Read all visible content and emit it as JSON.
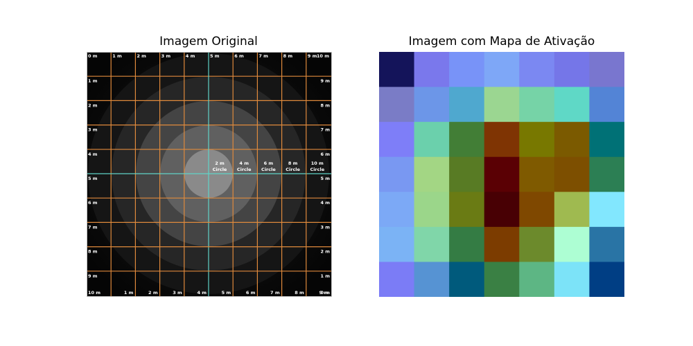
{
  "left_panel": {
    "title": "Imagem Original",
    "top_labels": [
      "0 m",
      "1 m",
      "2 m",
      "3 m",
      "4 m",
      "5 m",
      "6 m",
      "7 m",
      "8 m",
      "9 m",
      "10 m"
    ],
    "left_labels": [
      "1 m",
      "2 m",
      "3 m",
      "4 m",
      "5 m",
      "6 m",
      "7 m",
      "8 m",
      "9 m"
    ],
    "right_labels": [
      "9 m",
      "8 m",
      "7 m",
      "6 m",
      "5 m",
      "4 m",
      "3 m",
      "2 m",
      "1 m"
    ],
    "bottom_labels": [
      "10 m",
      "9 m",
      "8 m",
      "7 m",
      "6 m",
      "5 m",
      "4 m",
      "3 m",
      "2 m",
      "1 m",
      "0 m"
    ],
    "circle_labels": [
      {
        "value": "2 m",
        "word": "Circle"
      },
      {
        "value": "4 m",
        "word": "Circle"
      },
      {
        "value": "6 m",
        "word": "Circle"
      },
      {
        "value": "8 m",
        "word": "Circle"
      },
      {
        "value": "10 m",
        "word": "Circle"
      }
    ],
    "grid_color": "#e08a3c",
    "axis_color": "#5fd3c8"
  },
  "right_panel": {
    "title": "Imagem com Mapa de Ativação",
    "cells": [
      [
        "#14145a",
        "#7a78ec",
        "#7893f8",
        "#7ea7f7",
        "#7b88f2",
        "#7576e8",
        "#7976cf"
      ],
      [
        "#7a7cc6",
        "#6c96e8",
        "#4fa8cf",
        "#9bd691",
        "#76d3a7",
        "#5fd8c6",
        "#5384d6"
      ],
      [
        "#7e7ef8",
        "#6bd0ac",
        "#427e36",
        "#7f3403",
        "#787800",
        "#7b5a00",
        "#007176"
      ],
      [
        "#7998f2",
        "#a3d684",
        "#587b24",
        "#5a0004",
        "#7f5a00",
        "#7d4f00",
        "#2c7f54"
      ],
      [
        "#7ca9f6",
        "#9bd68a",
        "#6a7b14",
        "#480004",
        "#7f4800",
        "#9fba50",
        "#82e7fe"
      ],
      [
        "#7bb3f5",
        "#80d6a9",
        "#347c44",
        "#7c3c00",
        "#6c8a2c",
        "#adfed3",
        "#2974a5"
      ],
      [
        "#7b7cf6",
        "#5693d3",
        "#005a7c",
        "#3a8044",
        "#5db684",
        "#7ce3f8",
        "#003e84"
      ]
    ]
  }
}
